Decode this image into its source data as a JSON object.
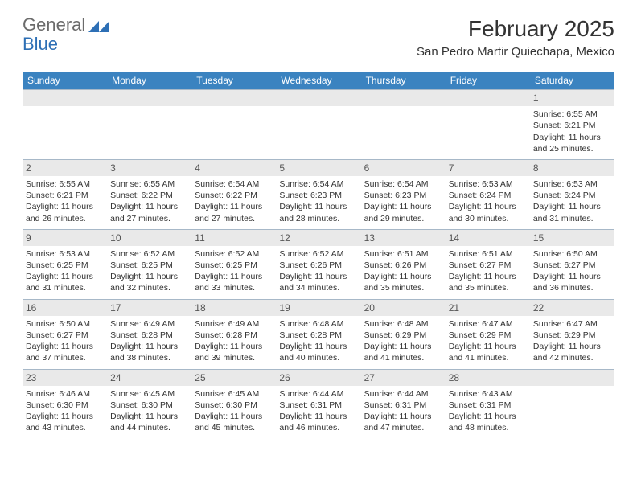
{
  "logo": {
    "text_general": "General",
    "text_blue": "Blue",
    "icon_color": "#2d6fb5"
  },
  "title": "February 2025",
  "location": "San Pedro Martir Quiechapa, Mexico",
  "colors": {
    "header_bg": "#3b83c0",
    "header_text": "#ffffff",
    "daynum_bg": "#e9e9e9",
    "border": "#a7b8c8",
    "text": "#333333"
  },
  "day_headers": [
    "Sunday",
    "Monday",
    "Tuesday",
    "Wednesday",
    "Thursday",
    "Friday",
    "Saturday"
  ],
  "weeks": [
    [
      {
        "n": "",
        "sunrise": "",
        "sunset": "",
        "daylight1": "",
        "daylight2": ""
      },
      {
        "n": "",
        "sunrise": "",
        "sunset": "",
        "daylight1": "",
        "daylight2": ""
      },
      {
        "n": "",
        "sunrise": "",
        "sunset": "",
        "daylight1": "",
        "daylight2": ""
      },
      {
        "n": "",
        "sunrise": "",
        "sunset": "",
        "daylight1": "",
        "daylight2": ""
      },
      {
        "n": "",
        "sunrise": "",
        "sunset": "",
        "daylight1": "",
        "daylight2": ""
      },
      {
        "n": "",
        "sunrise": "",
        "sunset": "",
        "daylight1": "",
        "daylight2": ""
      },
      {
        "n": "1",
        "sunrise": "Sunrise: 6:55 AM",
        "sunset": "Sunset: 6:21 PM",
        "daylight1": "Daylight: 11 hours",
        "daylight2": "and 25 minutes."
      }
    ],
    [
      {
        "n": "2",
        "sunrise": "Sunrise: 6:55 AM",
        "sunset": "Sunset: 6:21 PM",
        "daylight1": "Daylight: 11 hours",
        "daylight2": "and 26 minutes."
      },
      {
        "n": "3",
        "sunrise": "Sunrise: 6:55 AM",
        "sunset": "Sunset: 6:22 PM",
        "daylight1": "Daylight: 11 hours",
        "daylight2": "and 27 minutes."
      },
      {
        "n": "4",
        "sunrise": "Sunrise: 6:54 AM",
        "sunset": "Sunset: 6:22 PM",
        "daylight1": "Daylight: 11 hours",
        "daylight2": "and 27 minutes."
      },
      {
        "n": "5",
        "sunrise": "Sunrise: 6:54 AM",
        "sunset": "Sunset: 6:23 PM",
        "daylight1": "Daylight: 11 hours",
        "daylight2": "and 28 minutes."
      },
      {
        "n": "6",
        "sunrise": "Sunrise: 6:54 AM",
        "sunset": "Sunset: 6:23 PM",
        "daylight1": "Daylight: 11 hours",
        "daylight2": "and 29 minutes."
      },
      {
        "n": "7",
        "sunrise": "Sunrise: 6:53 AM",
        "sunset": "Sunset: 6:24 PM",
        "daylight1": "Daylight: 11 hours",
        "daylight2": "and 30 minutes."
      },
      {
        "n": "8",
        "sunrise": "Sunrise: 6:53 AM",
        "sunset": "Sunset: 6:24 PM",
        "daylight1": "Daylight: 11 hours",
        "daylight2": "and 31 minutes."
      }
    ],
    [
      {
        "n": "9",
        "sunrise": "Sunrise: 6:53 AM",
        "sunset": "Sunset: 6:25 PM",
        "daylight1": "Daylight: 11 hours",
        "daylight2": "and 31 minutes."
      },
      {
        "n": "10",
        "sunrise": "Sunrise: 6:52 AM",
        "sunset": "Sunset: 6:25 PM",
        "daylight1": "Daylight: 11 hours",
        "daylight2": "and 32 minutes."
      },
      {
        "n": "11",
        "sunrise": "Sunrise: 6:52 AM",
        "sunset": "Sunset: 6:25 PM",
        "daylight1": "Daylight: 11 hours",
        "daylight2": "and 33 minutes."
      },
      {
        "n": "12",
        "sunrise": "Sunrise: 6:52 AM",
        "sunset": "Sunset: 6:26 PM",
        "daylight1": "Daylight: 11 hours",
        "daylight2": "and 34 minutes."
      },
      {
        "n": "13",
        "sunrise": "Sunrise: 6:51 AM",
        "sunset": "Sunset: 6:26 PM",
        "daylight1": "Daylight: 11 hours",
        "daylight2": "and 35 minutes."
      },
      {
        "n": "14",
        "sunrise": "Sunrise: 6:51 AM",
        "sunset": "Sunset: 6:27 PM",
        "daylight1": "Daylight: 11 hours",
        "daylight2": "and 35 minutes."
      },
      {
        "n": "15",
        "sunrise": "Sunrise: 6:50 AM",
        "sunset": "Sunset: 6:27 PM",
        "daylight1": "Daylight: 11 hours",
        "daylight2": "and 36 minutes."
      }
    ],
    [
      {
        "n": "16",
        "sunrise": "Sunrise: 6:50 AM",
        "sunset": "Sunset: 6:27 PM",
        "daylight1": "Daylight: 11 hours",
        "daylight2": "and 37 minutes."
      },
      {
        "n": "17",
        "sunrise": "Sunrise: 6:49 AM",
        "sunset": "Sunset: 6:28 PM",
        "daylight1": "Daylight: 11 hours",
        "daylight2": "and 38 minutes."
      },
      {
        "n": "18",
        "sunrise": "Sunrise: 6:49 AM",
        "sunset": "Sunset: 6:28 PM",
        "daylight1": "Daylight: 11 hours",
        "daylight2": "and 39 minutes."
      },
      {
        "n": "19",
        "sunrise": "Sunrise: 6:48 AM",
        "sunset": "Sunset: 6:28 PM",
        "daylight1": "Daylight: 11 hours",
        "daylight2": "and 40 minutes."
      },
      {
        "n": "20",
        "sunrise": "Sunrise: 6:48 AM",
        "sunset": "Sunset: 6:29 PM",
        "daylight1": "Daylight: 11 hours",
        "daylight2": "and 41 minutes."
      },
      {
        "n": "21",
        "sunrise": "Sunrise: 6:47 AM",
        "sunset": "Sunset: 6:29 PM",
        "daylight1": "Daylight: 11 hours",
        "daylight2": "and 41 minutes."
      },
      {
        "n": "22",
        "sunrise": "Sunrise: 6:47 AM",
        "sunset": "Sunset: 6:29 PM",
        "daylight1": "Daylight: 11 hours",
        "daylight2": "and 42 minutes."
      }
    ],
    [
      {
        "n": "23",
        "sunrise": "Sunrise: 6:46 AM",
        "sunset": "Sunset: 6:30 PM",
        "daylight1": "Daylight: 11 hours",
        "daylight2": "and 43 minutes."
      },
      {
        "n": "24",
        "sunrise": "Sunrise: 6:45 AM",
        "sunset": "Sunset: 6:30 PM",
        "daylight1": "Daylight: 11 hours",
        "daylight2": "and 44 minutes."
      },
      {
        "n": "25",
        "sunrise": "Sunrise: 6:45 AM",
        "sunset": "Sunset: 6:30 PM",
        "daylight1": "Daylight: 11 hours",
        "daylight2": "and 45 minutes."
      },
      {
        "n": "26",
        "sunrise": "Sunrise: 6:44 AM",
        "sunset": "Sunset: 6:31 PM",
        "daylight1": "Daylight: 11 hours",
        "daylight2": "and 46 minutes."
      },
      {
        "n": "27",
        "sunrise": "Sunrise: 6:44 AM",
        "sunset": "Sunset: 6:31 PM",
        "daylight1": "Daylight: 11 hours",
        "daylight2": "and 47 minutes."
      },
      {
        "n": "28",
        "sunrise": "Sunrise: 6:43 AM",
        "sunset": "Sunset: 6:31 PM",
        "daylight1": "Daylight: 11 hours",
        "daylight2": "and 48 minutes."
      },
      {
        "n": "",
        "sunrise": "",
        "sunset": "",
        "daylight1": "",
        "daylight2": ""
      }
    ]
  ]
}
